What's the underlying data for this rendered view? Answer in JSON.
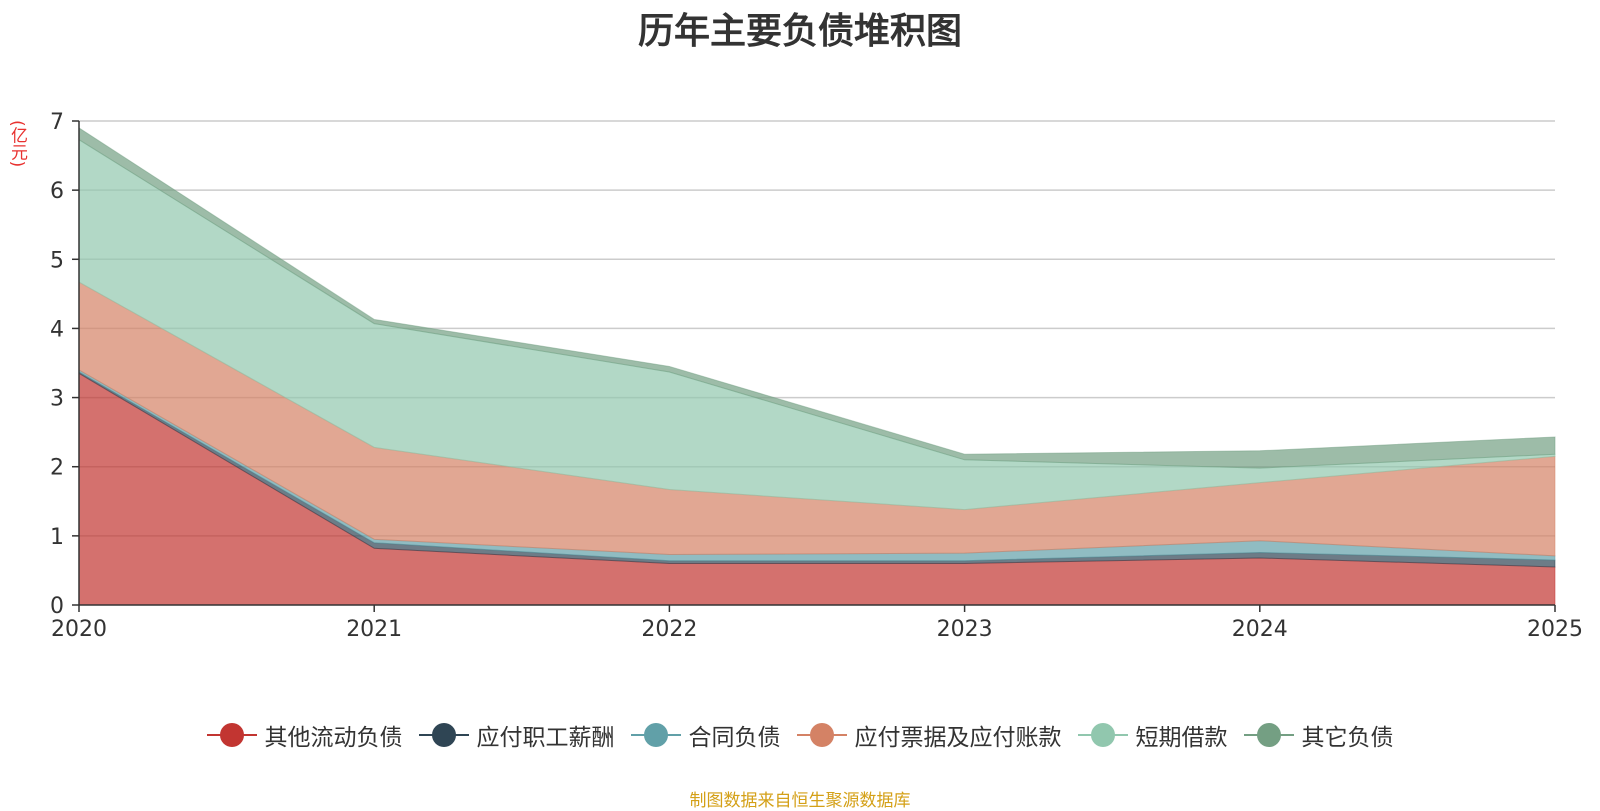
{
  "chart_data": {
    "type": "area",
    "title": "历年主要负债堆积图",
    "ylabel": "(亿元)",
    "xlabel": "",
    "x": [
      "2020",
      "2021",
      "2022",
      "2023",
      "2024",
      "2025"
    ],
    "ylim": [
      0,
      7
    ],
    "yticks": [
      0,
      1,
      2,
      3,
      4,
      5,
      6,
      7
    ],
    "grid": true,
    "legend_position": "bottom",
    "stacked": true,
    "series": [
      {
        "name": "其他流动负债",
        "color": "#c23531",
        "values": [
          3.35,
          0.82,
          0.6,
          0.6,
          0.68,
          0.55
        ]
      },
      {
        "name": "应付职工薪酬",
        "color": "#2f4554",
        "values": [
          0.02,
          0.08,
          0.04,
          0.04,
          0.08,
          0.1
        ]
      },
      {
        "name": "合同负债",
        "color": "#61a0a8",
        "values": [
          0.03,
          0.05,
          0.09,
          0.11,
          0.17,
          0.06
        ]
      },
      {
        "name": "应付票据及应付账款",
        "color": "#d48265",
        "values": [
          1.27,
          1.33,
          0.94,
          0.63,
          0.84,
          1.44
        ]
      },
      {
        "name": "短期借款",
        "color": "#91c7ae",
        "values": [
          2.06,
          1.79,
          1.7,
          0.72,
          0.21,
          0.03
        ]
      },
      {
        "name": "其它负债",
        "color": "#749f83",
        "values": [
          0.17,
          0.06,
          0.08,
          0.08,
          0.25,
          0.25
        ]
      }
    ]
  },
  "source_note": "制图数据来自恒生聚源数据库"
}
